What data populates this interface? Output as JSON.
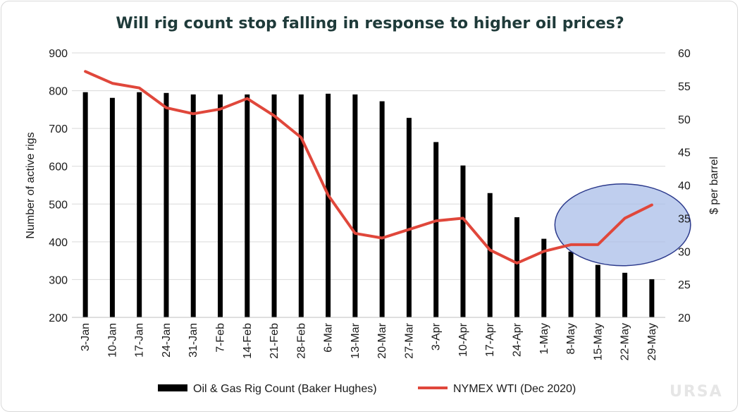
{
  "chart_data": {
    "type": "bar+line",
    "title": "Will rig count stop falling in response to higher oil prices?",
    "categories": [
      "3-Jan",
      "10-Jan",
      "17-Jan",
      "24-Jan",
      "31-Jan",
      "7-Feb",
      "14-Feb",
      "21-Feb",
      "28-Feb",
      "6-Mar",
      "13-Mar",
      "20-Mar",
      "27-Mar",
      "3-Apr",
      "10-Apr",
      "17-Apr",
      "24-Apr",
      "1-May",
      "8-May",
      "15-May",
      "22-May",
      "29-May"
    ],
    "series": [
      {
        "name": "Oil & Gas Rig Count (Baker Hughes)",
        "type": "bar",
        "axis": "left",
        "color": "#000000",
        "values": [
          796,
          781,
          796,
          794,
          790,
          790,
          790,
          790,
          790,
          792,
          790,
          772,
          728,
          664,
          602,
          529,
          465,
          408,
          374,
          339,
          318,
          301
        ]
      },
      {
        "name": "NYMEX WTI (Dec 2020)",
        "type": "line",
        "axis": "right",
        "color": "#e0473b",
        "values": [
          57.2,
          55.4,
          54.7,
          51.7,
          50.8,
          51.5,
          53.1,
          50.5,
          47.2,
          38.5,
          32.7,
          32.0,
          33.3,
          34.6,
          35.0,
          30.2,
          28.2,
          30.0,
          31.0,
          31.0,
          35.0,
          37.0
        ]
      }
    ],
    "ylabel": "Number of active rigs",
    "ylim": [
      200,
      900
    ],
    "yticks": [
      200,
      300,
      400,
      500,
      600,
      700,
      800,
      900
    ],
    "y2label": "$ per barrel",
    "y2lim": [
      20,
      60
    ],
    "y2ticks": [
      20,
      25,
      30,
      35,
      40,
      45,
      50,
      55,
      60
    ],
    "grid": true,
    "legend_position": "bottom",
    "annotation": {
      "shape": "ellipse",
      "color": "#a9bde8",
      "highlight_categories": [
        "15-May",
        "29-May"
      ]
    }
  },
  "watermark": "URSA"
}
